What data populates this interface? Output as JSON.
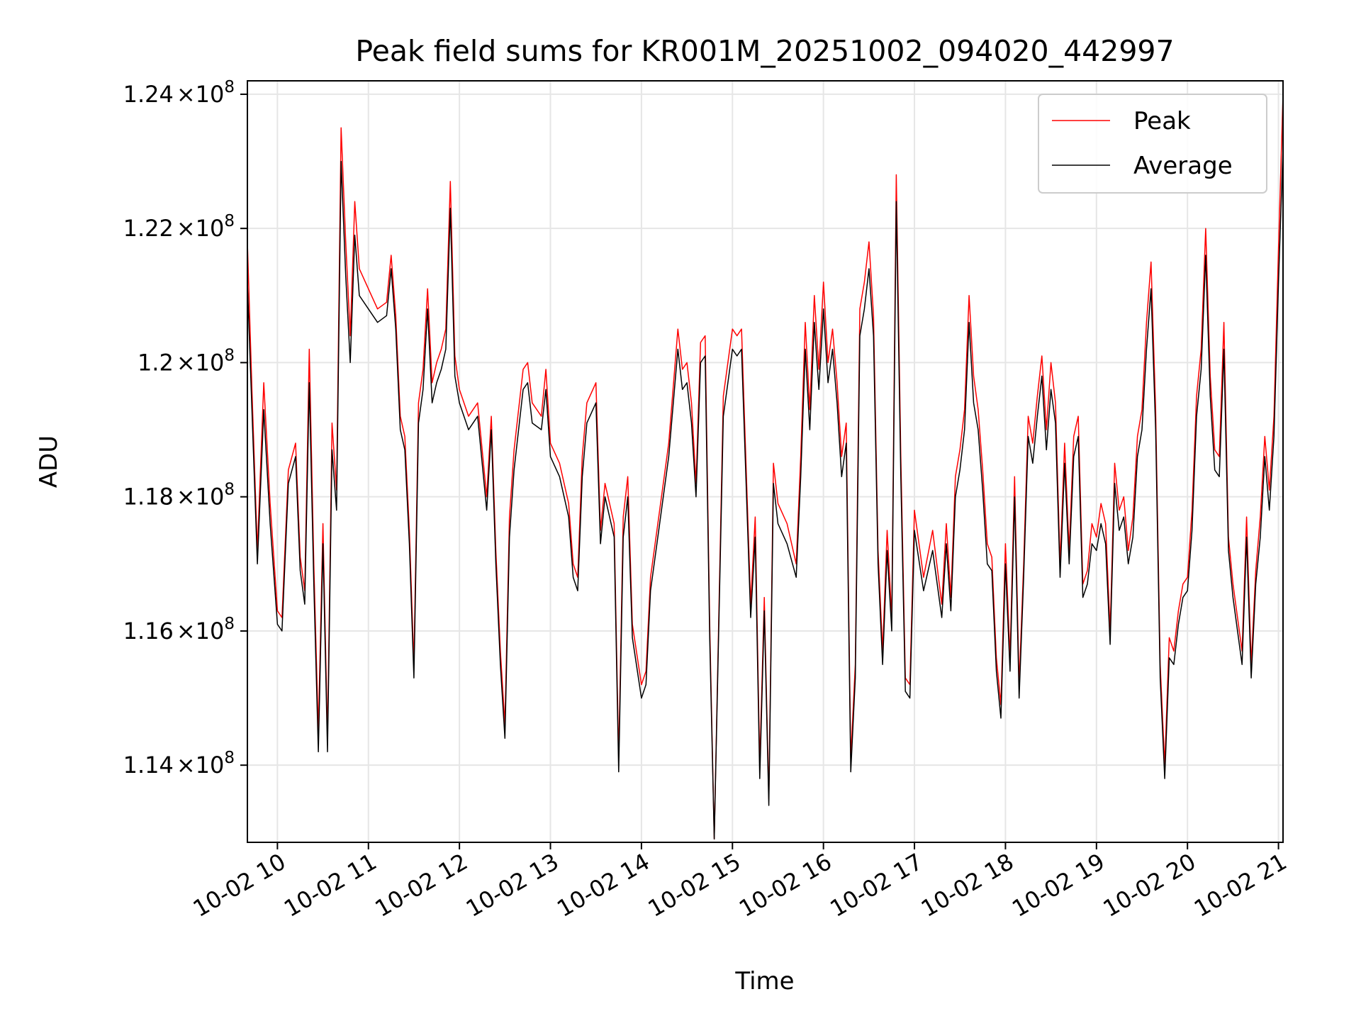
{
  "chart_data": {
    "type": "line",
    "title": "Peak field sums for KR001M_20251002_094020_442997",
    "xlabel": "Time",
    "ylabel": "ADU",
    "xlim": [
      9.67,
      21.05
    ],
    "ylim": [
      112.85,
      124.2
    ],
    "y_scale_note": "× 1e6 ADU",
    "grid": true,
    "legend_position": "top-right",
    "x_ticks": [
      {
        "value": 10,
        "label": "10-02 10"
      },
      {
        "value": 11,
        "label": "10-02 11"
      },
      {
        "value": 12,
        "label": "10-02 12"
      },
      {
        "value": 13,
        "label": "10-02 13"
      },
      {
        "value": 14,
        "label": "10-02 14"
      },
      {
        "value": 15,
        "label": "10-02 15"
      },
      {
        "value": 16,
        "label": "10-02 16"
      },
      {
        "value": 17,
        "label": "10-02 17"
      },
      {
        "value": 18,
        "label": "10-02 18"
      },
      {
        "value": 19,
        "label": "10-02 19"
      },
      {
        "value": 20,
        "label": "10-02 20"
      },
      {
        "value": 21,
        "label": "10-02 21"
      }
    ],
    "y_ticks": [
      {
        "value": 114,
        "mantissa": "1.14",
        "base": "10",
        "exp": "8"
      },
      {
        "value": 116,
        "mantissa": "1.16",
        "base": "10",
        "exp": "8"
      },
      {
        "value": 118,
        "mantissa": "1.18",
        "base": "10",
        "exp": "8"
      },
      {
        "value": 120,
        "mantissa": "1.2",
        "base": "10",
        "exp": "8"
      },
      {
        "value": 122,
        "mantissa": "1.22",
        "base": "10",
        "exp": "8"
      },
      {
        "value": 124,
        "mantissa": "1.24",
        "base": "10",
        "exp": "8"
      }
    ],
    "series": [
      {
        "name": "Peak",
        "color": "#ff0000",
        "x": [
          9.67,
          9.72,
          9.78,
          9.85,
          9.92,
          10.0,
          10.05,
          10.12,
          10.2,
          10.25,
          10.3,
          10.35,
          10.4,
          10.45,
          10.5,
          10.55,
          10.6,
          10.65,
          10.7,
          10.75,
          10.8,
          10.85,
          10.9,
          11.0,
          11.1,
          11.2,
          11.25,
          11.3,
          11.35,
          11.4,
          11.45,
          11.5,
          11.55,
          11.6,
          11.65,
          11.7,
          11.75,
          11.8,
          11.85,
          11.9,
          11.95,
          12.0,
          12.1,
          12.2,
          12.3,
          12.35,
          12.4,
          12.45,
          12.5,
          12.55,
          12.6,
          12.7,
          12.75,
          12.8,
          12.9,
          12.95,
          13.0,
          13.1,
          13.2,
          13.25,
          13.3,
          13.35,
          13.4,
          13.5,
          13.55,
          13.6,
          13.7,
          13.75,
          13.8,
          13.85,
          13.9,
          14.0,
          14.05,
          14.1,
          14.2,
          14.3,
          14.4,
          14.45,
          14.5,
          14.55,
          14.6,
          14.65,
          14.7,
          14.75,
          14.8,
          14.9,
          15.0,
          15.05,
          15.1,
          15.2,
          15.25,
          15.3,
          15.35,
          15.4,
          15.45,
          15.5,
          15.6,
          15.7,
          15.75,
          15.8,
          15.85,
          15.9,
          15.95,
          16.0,
          16.05,
          16.1,
          16.15,
          16.2,
          16.25,
          16.3,
          16.35,
          16.4,
          16.45,
          16.5,
          16.55,
          16.6,
          16.65,
          16.7,
          16.75,
          16.8,
          16.85,
          16.9,
          16.95,
          17.0,
          17.1,
          17.2,
          17.3,
          17.35,
          17.4,
          17.45,
          17.5,
          17.55,
          17.6,
          17.65,
          17.7,
          17.75,
          17.8,
          17.85,
          17.9,
          17.95,
          18.0,
          18.05,
          18.1,
          18.15,
          18.2,
          18.25,
          18.3,
          18.35,
          18.4,
          18.45,
          18.5,
          18.55,
          18.6,
          18.65,
          18.7,
          18.75,
          18.8,
          18.85,
          18.9,
          18.95,
          19.0,
          19.05,
          19.1,
          19.15,
          19.2,
          19.25,
          19.3,
          19.35,
          19.4,
          19.45,
          19.5,
          19.55,
          19.6,
          19.65,
          19.7,
          19.75,
          19.8,
          19.85,
          19.9,
          19.95,
          20.0,
          20.05,
          20.1,
          20.15,
          20.2,
          20.25,
          20.3,
          20.35,
          20.4,
          20.45,
          20.5,
          20.55,
          20.6,
          20.65,
          20.7,
          20.75,
          20.8,
          20.85,
          20.9,
          20.95,
          21.0,
          21.05
        ],
        "values": [
          121.8,
          119.6,
          117.2,
          119.7,
          117.9,
          116.3,
          116.2,
          118.4,
          118.8,
          117.1,
          116.6,
          120.2,
          117.0,
          114.5,
          117.6,
          114.4,
          119.1,
          118.1,
          123.5,
          121.8,
          120.4,
          122.4,
          121.4,
          121.1,
          120.8,
          120.9,
          121.6,
          120.7,
          119.2,
          118.9,
          117.5,
          115.5,
          119.4,
          119.9,
          121.1,
          119.7,
          120.0,
          120.2,
          120.5,
          122.7,
          120.1,
          119.6,
          119.2,
          119.4,
          118.0,
          119.2,
          117.2,
          115.7,
          114.6,
          117.7,
          118.7,
          119.9,
          120.0,
          119.4,
          119.2,
          119.9,
          118.8,
          118.5,
          117.9,
          117.0,
          116.8,
          118.6,
          119.4,
          119.7,
          117.5,
          118.2,
          117.6,
          114.1,
          117.7,
          118.3,
          116.1,
          115.2,
          115.4,
          116.8,
          117.8,
          118.8,
          120.5,
          119.9,
          120.0,
          119.4,
          118.2,
          120.3,
          120.4,
          116.1,
          112.9,
          119.5,
          120.5,
          120.4,
          120.5,
          116.4,
          117.7,
          114.0,
          116.5,
          113.5,
          118.5,
          117.9,
          117.6,
          117.0,
          118.6,
          120.6,
          119.3,
          121.0,
          119.9,
          121.2,
          120.0,
          120.5,
          119.7,
          118.6,
          119.1,
          114.1,
          115.5,
          120.8,
          121.2,
          121.8,
          120.7,
          117.2,
          115.7,
          117.5,
          116.2,
          122.8,
          118.6,
          115.3,
          115.2,
          117.8,
          116.8,
          117.5,
          116.4,
          117.6,
          116.5,
          118.3,
          118.7,
          119.3,
          121.0,
          119.8,
          119.3,
          118.4,
          117.3,
          117.1,
          115.6,
          114.9,
          117.3,
          115.6,
          118.3,
          115.2,
          117.0,
          119.2,
          118.8,
          119.5,
          120.1,
          119.0,
          120.0,
          119.4,
          117.0,
          118.8,
          117.2,
          118.9,
          119.2,
          116.7,
          116.9,
          117.6,
          117.4,
          117.9,
          117.6,
          116.0,
          118.5,
          117.8,
          118.0,
          117.2,
          117.7,
          118.9,
          119.3,
          120.6,
          121.5,
          119.3,
          115.5,
          114.0,
          115.9,
          115.7,
          116.3,
          116.7,
          116.8,
          117.8,
          119.5,
          120.2,
          122.0,
          119.8,
          118.7,
          118.6,
          120.6,
          117.4,
          116.7,
          116.2,
          115.7,
          117.7,
          115.5,
          116.9,
          117.7,
          118.9,
          118.1,
          119.2,
          121.7,
          124.0
        ]
      },
      {
        "name": "Average",
        "color": "#000000",
        "x": [
          9.67,
          9.72,
          9.78,
          9.85,
          9.92,
          10.0,
          10.05,
          10.12,
          10.2,
          10.25,
          10.3,
          10.35,
          10.4,
          10.45,
          10.5,
          10.55,
          10.6,
          10.65,
          10.7,
          10.75,
          10.8,
          10.85,
          10.9,
          11.0,
          11.1,
          11.2,
          11.25,
          11.3,
          11.35,
          11.4,
          11.45,
          11.5,
          11.55,
          11.6,
          11.65,
          11.7,
          11.75,
          11.8,
          11.85,
          11.9,
          11.95,
          12.0,
          12.1,
          12.2,
          12.3,
          12.35,
          12.4,
          12.45,
          12.5,
          12.55,
          12.6,
          12.7,
          12.75,
          12.8,
          12.9,
          12.95,
          13.0,
          13.1,
          13.2,
          13.25,
          13.3,
          13.35,
          13.4,
          13.5,
          13.55,
          13.6,
          13.7,
          13.75,
          13.8,
          13.85,
          13.9,
          14.0,
          14.05,
          14.1,
          14.2,
          14.3,
          14.4,
          14.45,
          14.5,
          14.55,
          14.6,
          14.65,
          14.7,
          14.75,
          14.8,
          14.9,
          15.0,
          15.05,
          15.1,
          15.2,
          15.25,
          15.3,
          15.35,
          15.4,
          15.45,
          15.5,
          15.6,
          15.7,
          15.75,
          15.8,
          15.85,
          15.9,
          15.95,
          16.0,
          16.05,
          16.1,
          16.15,
          16.2,
          16.25,
          16.3,
          16.35,
          16.4,
          16.45,
          16.5,
          16.55,
          16.6,
          16.65,
          16.7,
          16.75,
          16.8,
          16.85,
          16.9,
          16.95,
          17.0,
          17.1,
          17.2,
          17.3,
          17.35,
          17.4,
          17.45,
          17.5,
          17.55,
          17.6,
          17.65,
          17.7,
          17.75,
          17.8,
          17.85,
          17.9,
          17.95,
          18.0,
          18.05,
          18.1,
          18.15,
          18.2,
          18.25,
          18.3,
          18.35,
          18.4,
          18.45,
          18.5,
          18.55,
          18.6,
          18.65,
          18.7,
          18.75,
          18.8,
          18.85,
          18.9,
          18.95,
          19.0,
          19.05,
          19.1,
          19.15,
          19.2,
          19.25,
          19.3,
          19.35,
          19.4,
          19.45,
          19.5,
          19.55,
          19.6,
          19.65,
          19.7,
          19.75,
          19.8,
          19.85,
          19.9,
          19.95,
          20.0,
          20.05,
          20.1,
          20.15,
          20.2,
          20.25,
          20.3,
          20.35,
          20.4,
          20.45,
          20.5,
          20.55,
          20.6,
          20.65,
          20.7,
          20.75,
          20.8,
          20.85,
          20.9,
          20.95,
          21.0,
          21.05
        ],
        "values": [
          121.2,
          119.3,
          117.0,
          119.3,
          117.6,
          116.1,
          116.0,
          118.2,
          118.6,
          116.9,
          116.4,
          119.7,
          116.7,
          114.2,
          117.3,
          114.2,
          118.7,
          117.8,
          123.0,
          121.3,
          120.0,
          121.9,
          121.0,
          120.8,
          120.6,
          120.7,
          121.4,
          120.5,
          119.0,
          118.7,
          117.3,
          115.3,
          119.1,
          119.6,
          120.8,
          119.4,
          119.7,
          119.9,
          120.2,
          122.3,
          119.8,
          119.4,
          119.0,
          119.2,
          117.8,
          119.0,
          117.0,
          115.5,
          114.4,
          117.4,
          118.4,
          119.6,
          119.7,
          119.1,
          119.0,
          119.6,
          118.6,
          118.3,
          117.7,
          116.8,
          116.6,
          118.3,
          119.1,
          119.4,
          117.3,
          118.0,
          117.4,
          113.9,
          117.4,
          118.0,
          115.9,
          115.0,
          115.2,
          116.6,
          117.6,
          118.6,
          120.2,
          119.6,
          119.7,
          119.1,
          118.0,
          120.0,
          120.1,
          115.9,
          112.9,
          119.2,
          120.2,
          120.1,
          120.2,
          116.2,
          117.4,
          113.8,
          116.3,
          113.4,
          118.2,
          117.6,
          117.3,
          116.8,
          118.3,
          120.2,
          119.0,
          120.6,
          119.6,
          120.8,
          119.7,
          120.2,
          119.4,
          118.3,
          118.8,
          113.9,
          115.3,
          120.4,
          120.8,
          121.4,
          120.4,
          117.0,
          115.5,
          117.2,
          116.0,
          122.4,
          118.3,
          115.1,
          115.0,
          117.5,
          116.6,
          117.2,
          116.2,
          117.3,
          116.3,
          118.0,
          118.4,
          119.0,
          120.6,
          119.4,
          119.0,
          118.1,
          117.0,
          116.9,
          115.4,
          114.7,
          117.0,
          115.4,
          118.0,
          115.0,
          116.8,
          118.9,
          118.5,
          119.2,
          119.8,
          118.7,
          119.6,
          119.1,
          116.8,
          118.5,
          117.0,
          118.6,
          118.9,
          116.5,
          116.7,
          117.3,
          117.2,
          117.6,
          117.3,
          115.8,
          118.2,
          117.5,
          117.7,
          117.0,
          117.4,
          118.6,
          119.0,
          120.2,
          121.1,
          119.0,
          115.3,
          113.8,
          115.6,
          115.5,
          116.1,
          116.5,
          116.6,
          117.5,
          119.2,
          119.9,
          121.6,
          119.5,
          118.4,
          118.3,
          120.2,
          117.2,
          116.5,
          116.0,
          115.5,
          117.4,
          115.3,
          116.7,
          117.4,
          118.6,
          117.8,
          118.9,
          121.2,
          123.2
        ]
      }
    ]
  }
}
